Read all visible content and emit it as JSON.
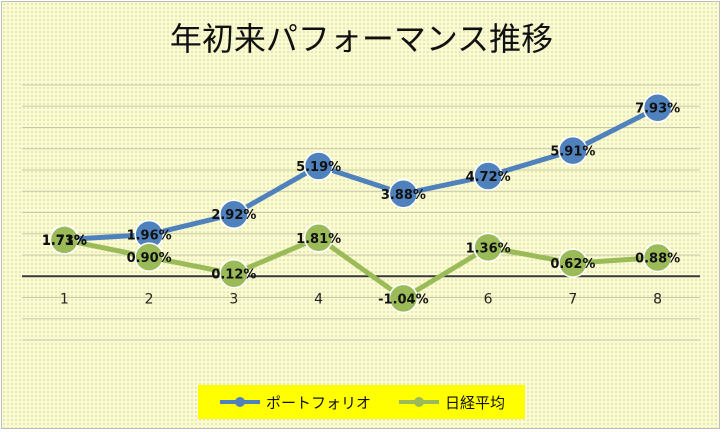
{
  "chart_data": {
    "type": "line",
    "title": "年初来パフォーマンス推移",
    "categories": [
      "1",
      "2",
      "3",
      "4",
      "5",
      "6",
      "7",
      "8"
    ],
    "ylim": [
      -3,
      9
    ],
    "grid": true,
    "legend_position": "bottom",
    "series": [
      {
        "name": "ポートフォリオ",
        "color": "#4f81bd",
        "values": [
          1.73,
          1.96,
          2.92,
          5.19,
          3.88,
          4.72,
          5.91,
          7.93
        ],
        "labels": [
          "1.73%",
          "1.96%",
          "2.92%",
          "5.19%",
          "3.88%",
          "4.72%",
          "5.91%",
          "7.93%"
        ]
      },
      {
        "name": "日経平均",
        "color": "#9bbb59",
        "values": [
          1.71,
          0.9,
          0.12,
          1.81,
          -1.04,
          1.36,
          0.62,
          0.88
        ],
        "labels": [
          "1.71%",
          "0.90%",
          "0.12%",
          "1.81%",
          "-1.04%",
          "1.36%",
          "0.62%",
          "0.88%"
        ]
      }
    ]
  }
}
